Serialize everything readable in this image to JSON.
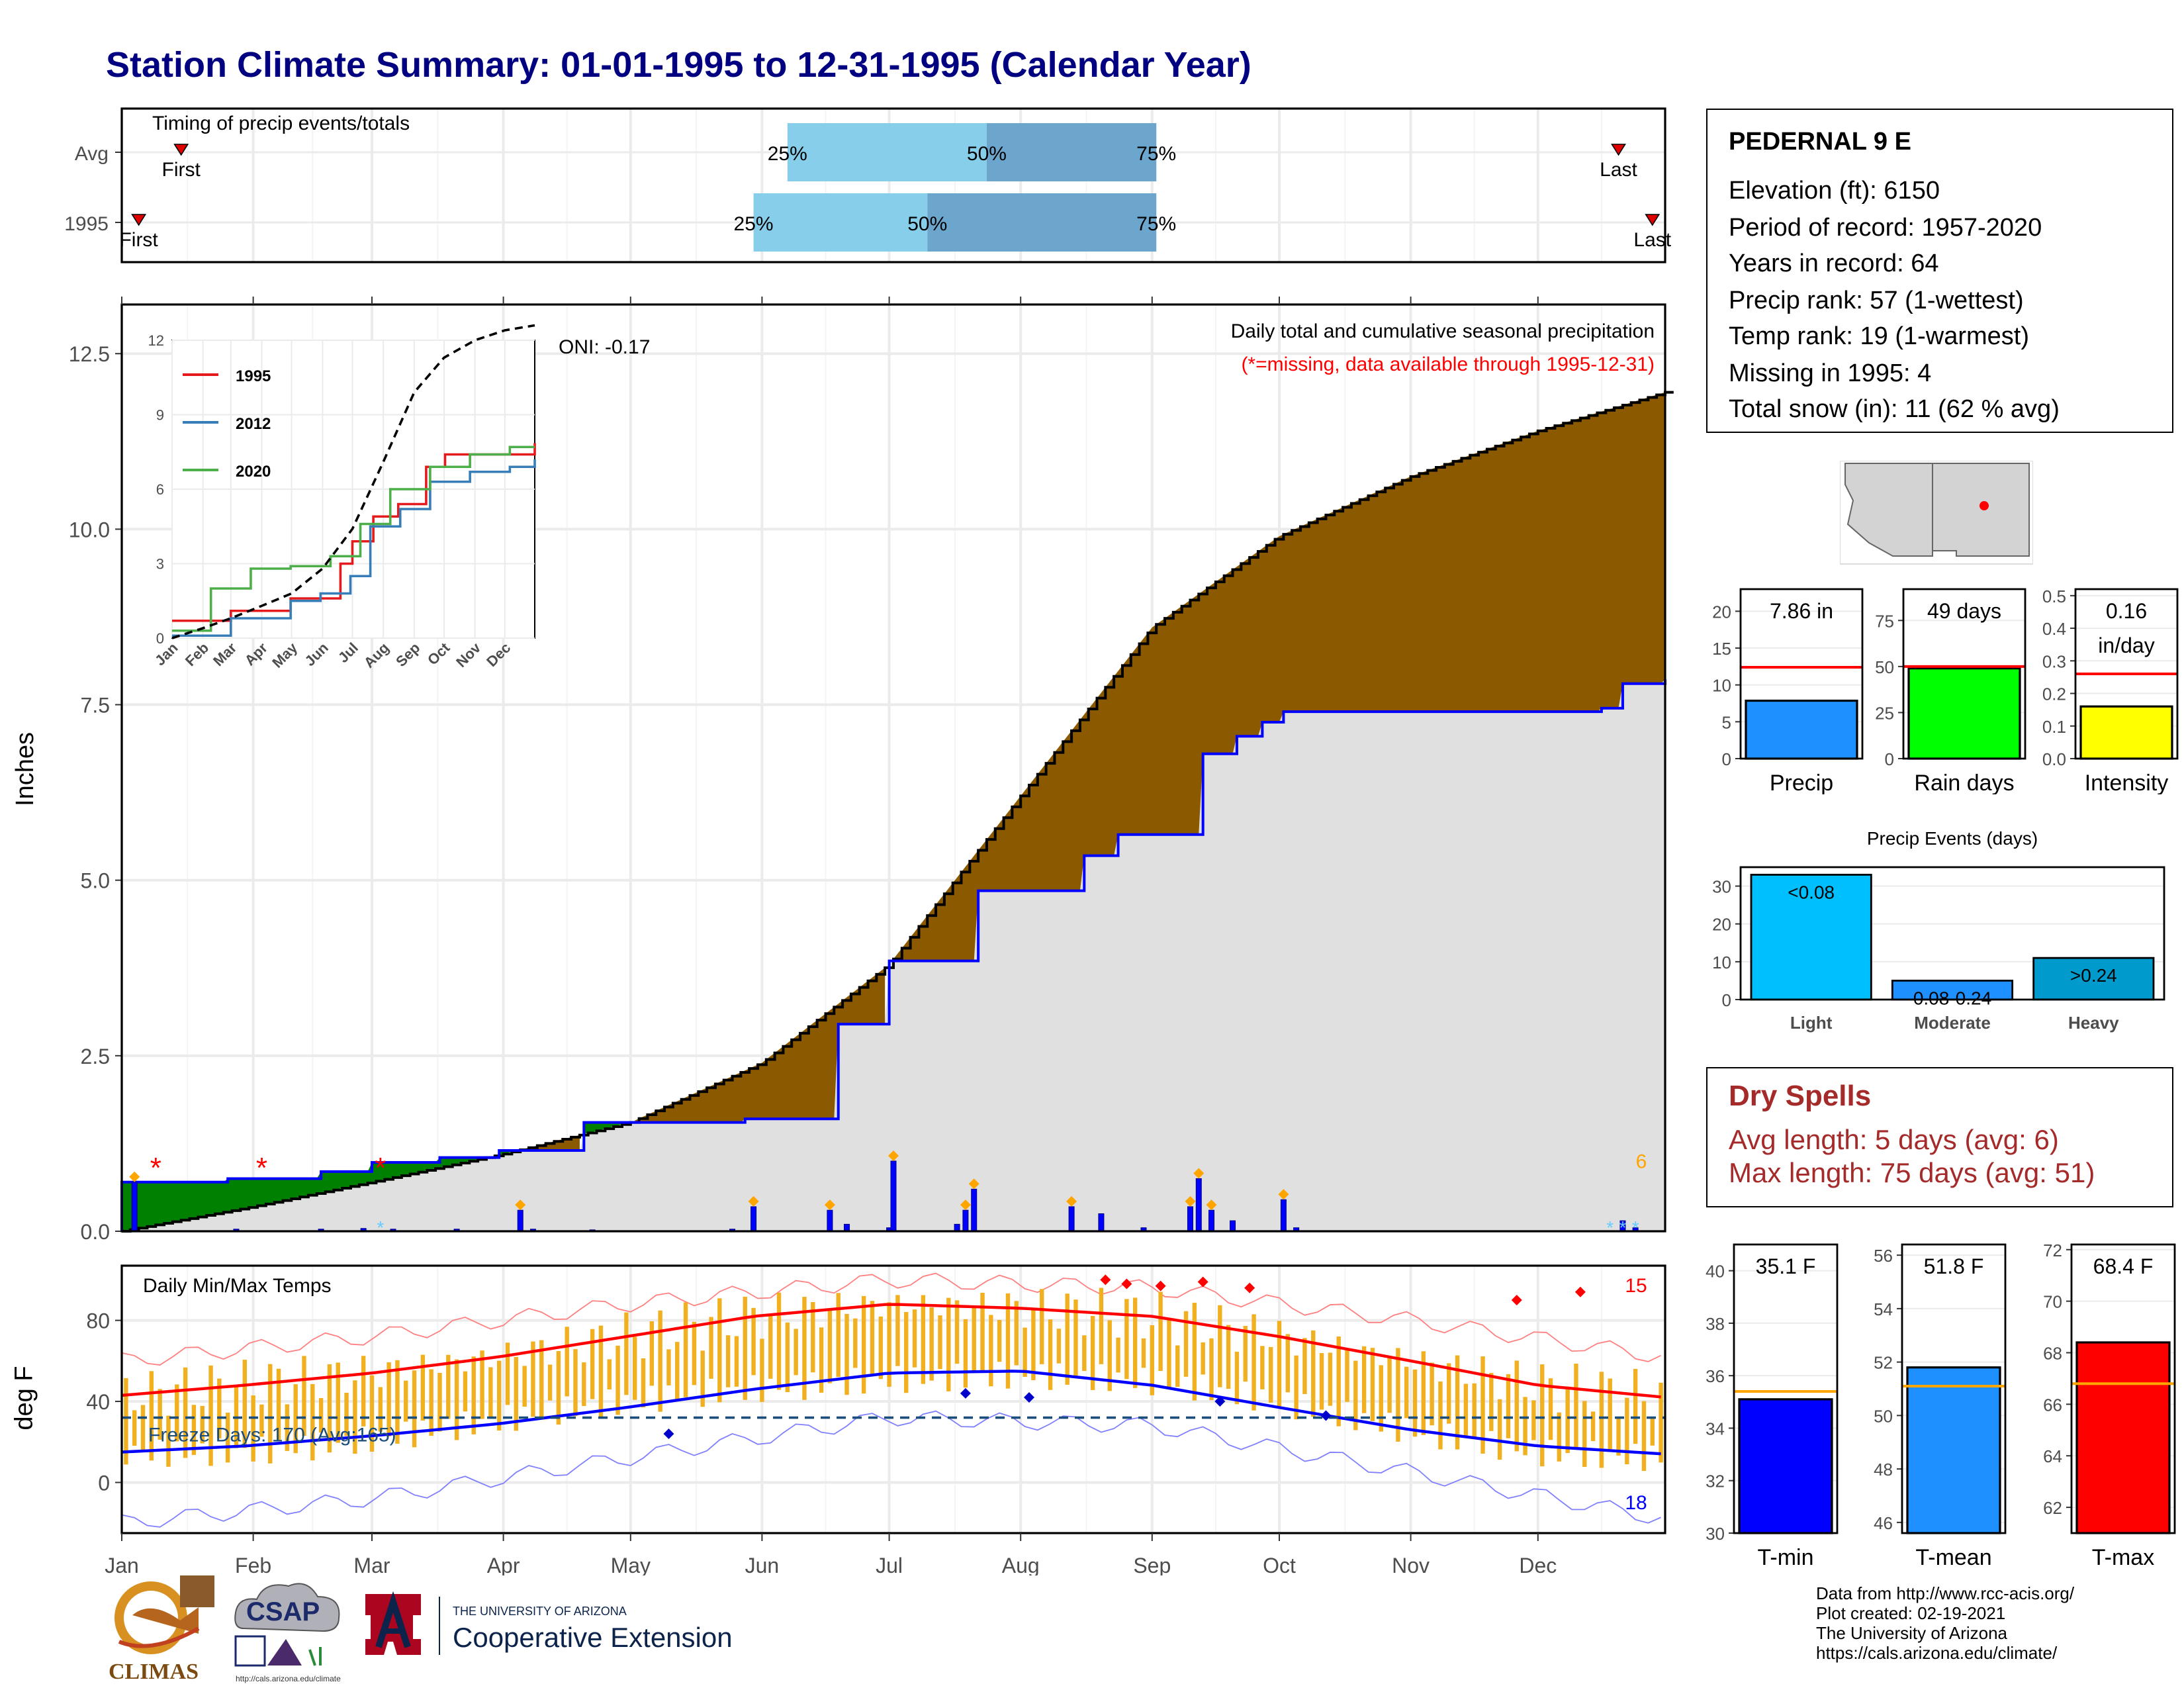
{
  "page_title": "Station Climate Summary: 01-01-1995 to 12-31-1995 (Calendar Year)",
  "station": {
    "name": "PEDERNAL 9 E",
    "lines": [
      "Elevation (ft): 6150",
      "Period of record: 1957-2020",
      "Years in record: 64",
      "Precip rank: 57 (1-wettest)",
      "Temp rank: 19 (1-warmest)",
      "Missing in 1995: 4",
      "Total snow (in): 11 (62 % avg)"
    ]
  },
  "dry_spells": {
    "title": "Dry Spells",
    "avg": "Avg length: 5 days (avg: 6)",
    "max": "Max length: 75 days (avg: 51)"
  },
  "credits": [
    "Data from http://www.rcc-acis.org/",
    "Plot created: 02-19-2021",
    "The University of Arizona",
    "https://cals.arizona.edu/climate/"
  ],
  "logos": {
    "climas": "CLIMAS",
    "csap": "CSAP",
    "csap_url": "http://cals.arizona.edu/climate",
    "ua_small": "THE UNIVERSITY OF ARIZONA",
    "ua_big": "Cooperative Extension"
  },
  "colors": {
    "title": "#000080",
    "brown": "#8B5A00",
    "green": "#008000",
    "light_blue": "#87CEEB",
    "mid_blue": "#6CA6CD",
    "gold": "#F0B020",
    "dry": "#a52a2a"
  },
  "chart_data": [
    {
      "id": "timing",
      "type": "bar",
      "title": "Timing of precip events/totals",
      "rows": [
        {
          "label": "Avg",
          "first": "Jan 15",
          "p25": "Jun 7",
          "p50": "Jul 24",
          "p75": "Sep 2",
          "last": "Dec 20"
        },
        {
          "label": "1995",
          "first": "Jan 5",
          "p25": "May 30",
          "p50": "Jul 10",
          "p75": "Sep 2",
          "last": "Dec 28"
        }
      ],
      "labels": {
        "first": "First",
        "last": "Last",
        "p25": "25%",
        "p50": "50%",
        "p75": "75%"
      }
    },
    {
      "id": "precip",
      "type": "area",
      "title": "Daily total and cumulative seasonal precipitation",
      "subtitle": "(*=missing, data available through 1995-12-31)",
      "ylabel": "Inches",
      "ylim": [
        0,
        13.2
      ],
      "yticks": [
        "0.0",
        "2.5",
        "5.0",
        "7.5",
        "10.0",
        "12.5"
      ],
      "x_day_of_year": [
        1,
        32,
        60,
        91,
        121,
        152,
        182,
        213,
        244,
        274,
        305,
        335,
        365
      ],
      "avg_cumulative": [
        0,
        0.35,
        0.7,
        1.1,
        1.55,
        2.4,
        3.8,
        6.2,
        8.6,
        9.9,
        10.75,
        11.4,
        11.95
      ],
      "obs_steps": [
        [
          1,
          0.7
        ],
        [
          26,
          0.75
        ],
        [
          48,
          0.85
        ],
        [
          60,
          0.98
        ],
        [
          76,
          1.05
        ],
        [
          90,
          1.15
        ],
        [
          110,
          1.55
        ],
        [
          148,
          1.6
        ],
        [
          170,
          2.95
        ],
        [
          182,
          3.85
        ],
        [
          203,
          4.85
        ],
        [
          228,
          5.35
        ],
        [
          236,
          5.65
        ],
        [
          256,
          6.8
        ],
        [
          264,
          7.05
        ],
        [
          270,
          7.25
        ],
        [
          275,
          7.4
        ],
        [
          300,
          7.4
        ],
        [
          335,
          7.4
        ],
        [
          350,
          7.45
        ],
        [
          355,
          7.8
        ],
        [
          365,
          7.86
        ]
      ],
      "oni": "ONI: -0.17",
      "late_count": "6",
      "daily_bars": [
        [
          4,
          0.7
        ],
        [
          28,
          0.03
        ],
        [
          48,
          0.03
        ],
        [
          58,
          0.04
        ],
        [
          65,
          0.03
        ],
        [
          80,
          0.03
        ],
        [
          95,
          0.3
        ],
        [
          98,
          0.03
        ],
        [
          112,
          0.02
        ],
        [
          145,
          0.03
        ],
        [
          150,
          0.35
        ],
        [
          168,
          0.3
        ],
        [
          172,
          0.1
        ],
        [
          182,
          0.05
        ],
        [
          183,
          1.0
        ],
        [
          198,
          0.1
        ],
        [
          200,
          0.3
        ],
        [
          202,
          0.6
        ],
        [
          225,
          0.35
        ],
        [
          232,
          0.25
        ],
        [
          242,
          0.05
        ],
        [
          253,
          0.35
        ],
        [
          255,
          0.75
        ],
        [
          258,
          0.3
        ],
        [
          263,
          0.15
        ],
        [
          275,
          0.45
        ],
        [
          278,
          0.05
        ],
        [
          355,
          0.15
        ],
        [
          358,
          0.05
        ]
      ],
      "missing_days": [
        9,
        34,
        62
      ],
      "inset": {
        "type": "line",
        "ylim": [
          0,
          12
        ],
        "yticks": [
          "0",
          "3",
          "6",
          "9",
          "12"
        ],
        "months": [
          "Jan",
          "Feb",
          "Mar",
          "Apr",
          "May",
          "Jun",
          "Jul",
          "Aug",
          "Sep",
          "Oct",
          "Nov",
          "Dec"
        ],
        "series": [
          {
            "name": "1995",
            "color": "#e41a1c",
            "points": [
              [
                1,
                0.7
              ],
              [
                60,
                1.1
              ],
              [
                120,
                1.6
              ],
              [
                170,
                3.0
              ],
              [
                182,
                3.9
              ],
              [
                203,
                4.9
              ],
              [
                228,
                5.4
              ],
              [
                256,
                6.9
              ],
              [
                275,
                7.4
              ],
              [
                335,
                7.4
              ],
              [
                365,
                7.86
              ]
            ]
          },
          {
            "name": "2012",
            "color": "#377eb8",
            "points": [
              [
                1,
                0.1
              ],
              [
                60,
                0.8
              ],
              [
                120,
                1.5
              ],
              [
                150,
                1.8
              ],
              [
                180,
                2.5
              ],
              [
                200,
                4.5
              ],
              [
                230,
                5.2
              ],
              [
                260,
                6.3
              ],
              [
                300,
                6.7
              ],
              [
                340,
                6.9
              ],
              [
                365,
                7.2
              ]
            ]
          },
          {
            "name": "2020",
            "color": "#4daf4a",
            "points": [
              [
                1,
                0.3
              ],
              [
                40,
                2.0
              ],
              [
                80,
                2.8
              ],
              [
                120,
                2.9
              ],
              [
                160,
                3.3
              ],
              [
                190,
                4.6
              ],
              [
                220,
                6.0
              ],
              [
                260,
                6.9
              ],
              [
                300,
                7.4
              ],
              [
                340,
                7.7
              ],
              [
                365,
                7.7
              ]
            ]
          },
          {
            "name": "",
            "color": "#000000",
            "dashed": true,
            "points": [
              [
                1,
                0
              ],
              [
                32,
                0.4
              ],
              [
                60,
                0.8
              ],
              [
                91,
                1.3
              ],
              [
                121,
                1.8
              ],
              [
                152,
                2.8
              ],
              [
                182,
                4.4
              ],
              [
                213,
                7.1
              ],
              [
                244,
                9.9
              ],
              [
                274,
                11.3
              ],
              [
                305,
                12.0
              ],
              [
                335,
                12.4
              ],
              [
                365,
                12.6
              ]
            ]
          }
        ]
      }
    },
    {
      "id": "temps",
      "type": "line",
      "title": "Daily Min/Max Temps",
      "ylabel": "deg F",
      "ylim": [
        -25,
        107
      ],
      "yticks": [
        "0",
        "40",
        "80"
      ],
      "months": [
        "Jan",
        "Feb",
        "Mar",
        "Apr",
        "May",
        "Jun",
        "Jul",
        "Aug",
        "Sep",
        "Oct",
        "Nov",
        "Dec"
      ],
      "avg_max": [
        [
          1,
          43
        ],
        [
          30,
          48
        ],
        [
          60,
          54
        ],
        [
          90,
          62
        ],
        [
          120,
          72
        ],
        [
          150,
          82
        ],
        [
          182,
          88
        ],
        [
          213,
          86
        ],
        [
          244,
          82
        ],
        [
          274,
          72
        ],
        [
          305,
          60
        ],
        [
          335,
          48
        ],
        [
          365,
          42
        ]
      ],
      "avg_min": [
        [
          1,
          15
        ],
        [
          30,
          18
        ],
        [
          60,
          23
        ],
        [
          90,
          29
        ],
        [
          120,
          37
        ],
        [
          150,
          46
        ],
        [
          182,
          54
        ],
        [
          213,
          55
        ],
        [
          244,
          48
        ],
        [
          274,
          37
        ],
        [
          305,
          26
        ],
        [
          335,
          18
        ],
        [
          365,
          14
        ]
      ],
      "record_max": [
        [
          1,
          60
        ],
        [
          60,
          72
        ],
        [
          120,
          88
        ],
        [
          182,
          100
        ],
        [
          244,
          96
        ],
        [
          305,
          80
        ],
        [
          365,
          62
        ]
      ],
      "record_min": [
        [
          1,
          -20
        ],
        [
          60,
          -8
        ],
        [
          120,
          12
        ],
        [
          182,
          32
        ],
        [
          244,
          28
        ],
        [
          305,
          5
        ],
        [
          365,
          -18
        ]
      ],
      "freeze_line": 32,
      "freeze_text": "Freeze Days: 170 (Avg:165)",
      "hot_count": "15",
      "cold_count": "18"
    },
    {
      "id": "precip_total",
      "type": "bar",
      "value": 7.86,
      "avg": 12.4,
      "ylim": [
        0,
        23
      ],
      "yticks": [
        "0",
        "5",
        "10",
        "15",
        "20"
      ],
      "label": "7.86 in",
      "xlabel": "Precip",
      "color": "#1E90FF"
    },
    {
      "id": "rain_days",
      "type": "bar",
      "value": 49,
      "avg": 50,
      "ylim": [
        0,
        92
      ],
      "yticks": [
        "0",
        "25",
        "50",
        "75"
      ],
      "label": "49 days",
      "xlabel": "Rain days",
      "color": "#00FF00"
    },
    {
      "id": "intensity",
      "type": "bar",
      "value": 0.16,
      "avg": 0.26,
      "ylim": [
        0,
        0.52
      ],
      "yticks": [
        "0.0",
        "0.1",
        "0.2",
        "0.3",
        "0.4",
        "0.5"
      ],
      "label": "0.16",
      "label2": "in/day",
      "xlabel": "Intensity",
      "color": "#FFFF00"
    },
    {
      "id": "precip_events",
      "type": "bar",
      "title": "Precip Events (days)",
      "categories": [
        "Light",
        "Moderate",
        "Heavy"
      ],
      "values": [
        33,
        5,
        11
      ],
      "bar_labels": [
        "<0.08",
        "0.08-0.24",
        ">0.24"
      ],
      "colors": [
        "#00BFFF",
        "#1E90FF",
        "#009ACD"
      ],
      "ylim": [
        0,
        35
      ],
      "yticks": [
        "0",
        "10",
        "20",
        "30"
      ]
    },
    {
      "id": "tmin",
      "type": "bar",
      "value": 35.1,
      "avg": 35.4,
      "ylim": [
        30,
        41
      ],
      "yticks": [
        "30",
        "32",
        "34",
        "36",
        "38",
        "40"
      ],
      "label": "35.1 F",
      "xlabel": "T-min",
      "color": "#0000FF"
    },
    {
      "id": "tmean",
      "type": "bar",
      "value": 51.8,
      "avg": 51.1,
      "ylim": [
        45.6,
        56.4
      ],
      "yticks": [
        "46",
        "48",
        "50",
        "52",
        "54",
        "56"
      ],
      "label": "51.8 F",
      "xlabel": "T-mean",
      "color": "#1E90FF"
    },
    {
      "id": "tmax",
      "type": "bar",
      "value": 68.4,
      "avg": 66.8,
      "ylim": [
        61,
        72.2
      ],
      "yticks": [
        "62",
        "64",
        "66",
        "68",
        "70",
        "72"
      ],
      "label": "68.4 F",
      "xlabel": "T-max",
      "color": "#FF0000"
    }
  ]
}
